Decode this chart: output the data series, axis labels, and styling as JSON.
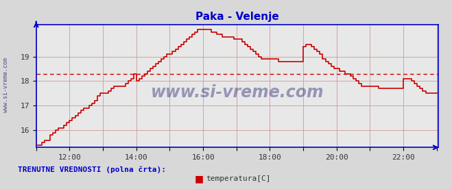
{
  "title": "Paka - Velenje",
  "title_color": "#0000cc",
  "bg_color": "#d8d8d8",
  "plot_bg_color": "#e8e8e8",
  "x_start_hour": 11,
  "x_end_hour": 23,
  "x_ticks": [
    11,
    12,
    13,
    14,
    15,
    16,
    17,
    18,
    19,
    20,
    21,
    22,
    23
  ],
  "x_tick_labels": [
    "",
    "12:00",
    "",
    "14:00",
    "",
    "16:00",
    "",
    "18:00",
    "",
    "20:00",
    "",
    "22:00",
    ""
  ],
  "ylim": [
    15.3,
    20.3
  ],
  "y_ticks": [
    16,
    17,
    18,
    19
  ],
  "avg_line_y": 18.3,
  "line_color": "#cc0000",
  "avg_line_color": "#cc0000",
  "grid_color_major": "#cc9999",
  "axis_color": "#0000cc",
  "watermark": "www.si-vreme.com",
  "watermark_color": "#1a1a6e",
  "left_label": "www.si-vreme.com",
  "bottom_label": "TRENUTNE VREDNOSTI (polna črta):",
  "legend_label": "temperatura[C]",
  "legend_color": "#cc0000",
  "time_points": [
    11.0,
    11.083,
    11.167,
    11.25,
    11.333,
    11.417,
    11.5,
    11.583,
    11.667,
    11.75,
    11.833,
    11.917,
    12.0,
    12.083,
    12.167,
    12.25,
    12.333,
    12.417,
    12.5,
    12.583,
    12.667,
    12.75,
    12.833,
    12.917,
    13.0,
    13.083,
    13.167,
    13.25,
    13.333,
    13.417,
    13.5,
    13.583,
    13.667,
    13.75,
    13.833,
    13.917,
    14.0,
    14.083,
    14.167,
    14.25,
    14.333,
    14.417,
    14.5,
    14.583,
    14.667,
    14.75,
    14.833,
    14.917,
    15.0,
    15.083,
    15.167,
    15.25,
    15.333,
    15.417,
    15.5,
    15.583,
    15.667,
    15.75,
    15.833,
    15.917,
    16.0,
    16.083,
    16.167,
    16.25,
    16.333,
    16.417,
    16.5,
    16.583,
    16.667,
    16.75,
    16.833,
    16.917,
    17.0,
    17.083,
    17.167,
    17.25,
    17.333,
    17.417,
    17.5,
    17.583,
    17.667,
    17.75,
    17.833,
    17.917,
    18.0,
    18.083,
    18.167,
    18.25,
    18.333,
    18.417,
    18.5,
    18.583,
    18.667,
    18.75,
    18.833,
    18.917,
    19.0,
    19.083,
    19.167,
    19.25,
    19.333,
    19.417,
    19.5,
    19.583,
    19.667,
    19.75,
    19.833,
    19.917,
    20.0,
    20.083,
    20.167,
    20.25,
    20.333,
    20.417,
    20.5,
    20.583,
    20.667,
    20.75,
    20.833,
    20.917,
    21.0,
    21.083,
    21.167,
    21.25,
    21.333,
    21.417,
    21.5,
    21.583,
    21.667,
    21.75,
    21.833,
    21.917,
    22.0,
    22.083,
    22.167,
    22.25,
    22.333,
    22.417,
    22.5,
    22.583,
    22.667,
    22.75,
    22.833,
    22.917,
    23.0
  ],
  "temp_values": [
    15.4,
    15.4,
    15.5,
    15.6,
    15.6,
    15.8,
    15.9,
    16.0,
    16.1,
    16.1,
    16.2,
    16.3,
    16.4,
    16.5,
    16.6,
    16.7,
    16.8,
    16.9,
    16.9,
    17.0,
    17.1,
    17.2,
    17.4,
    17.5,
    17.5,
    17.5,
    17.6,
    17.7,
    17.8,
    17.8,
    17.8,
    17.8,
    17.9,
    18.0,
    18.1,
    18.3,
    18.0,
    18.1,
    18.2,
    18.3,
    18.4,
    18.5,
    18.6,
    18.7,
    18.8,
    18.9,
    19.0,
    19.1,
    19.1,
    19.2,
    19.3,
    19.4,
    19.5,
    19.6,
    19.7,
    19.8,
    19.9,
    20.0,
    20.1,
    20.1,
    20.1,
    20.1,
    20.1,
    20.0,
    20.0,
    19.9,
    19.9,
    19.8,
    19.8,
    19.8,
    19.8,
    19.7,
    19.7,
    19.7,
    19.6,
    19.5,
    19.4,
    19.3,
    19.2,
    19.1,
    19.0,
    18.9,
    18.9,
    18.9,
    18.9,
    18.9,
    18.9,
    18.8,
    18.8,
    18.8,
    18.8,
    18.8,
    18.8,
    18.8,
    18.8,
    18.8,
    19.4,
    19.5,
    19.5,
    19.4,
    19.3,
    19.2,
    19.1,
    18.9,
    18.8,
    18.7,
    18.6,
    18.5,
    18.5,
    18.4,
    18.4,
    18.3,
    18.3,
    18.2,
    18.1,
    18.0,
    17.9,
    17.8,
    17.8,
    17.8,
    17.8,
    17.8,
    17.8,
    17.7,
    17.7,
    17.7,
    17.7,
    17.7,
    17.7,
    17.7,
    17.7,
    17.7,
    18.1,
    18.1,
    18.1,
    18.0,
    17.9,
    17.8,
    17.7,
    17.6,
    17.5,
    17.5,
    17.5,
    17.5,
    17.5
  ]
}
